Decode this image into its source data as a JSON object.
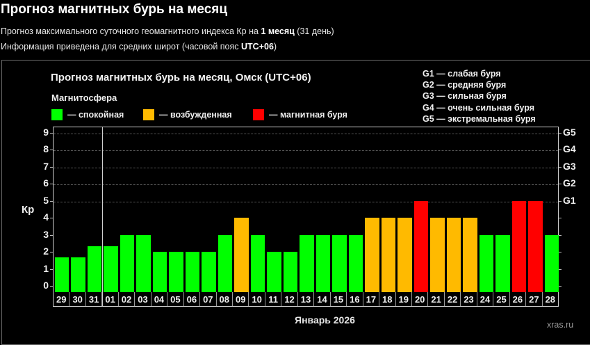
{
  "header": {
    "title": "Прогноз магнитных бурь на месяц",
    "line1_prefix": "Прогноз максимального суточного геомагнитного индекса Кр на ",
    "line1_bold": "1 месяц",
    "line1_suffix": " (31 день)",
    "line2_prefix": "Информация приведена для средних широт (часовой пояс ",
    "line2_bold": "UTC+06",
    "line2_suffix": ")"
  },
  "colors": {
    "calm": "#00ff00",
    "excited": "#ffba00",
    "storm": "#ff0000",
    "background": "#000000"
  },
  "legend": {
    "title": "Магнитосфера",
    "items": [
      {
        "label": "— спокойная",
        "color": "#00ff00"
      },
      {
        "label": "— возбужденная",
        "color": "#ffba00"
      },
      {
        "label": "— магнитная буря",
        "color": "#ff0000"
      }
    ],
    "g_scale": [
      "G1 — слабая буря",
      "G2 — средняя буря",
      "G3 — сильная буря",
      "G4 — очень сильная буря",
      "G5 — экстремальная буря"
    ]
  },
  "chart_data": {
    "type": "bar",
    "title": "Прогноз магнитных бурь на месяц, Омск (UTC+06)",
    "xlabel": "Январь 2026",
    "ylabel": "Кр",
    "ylim": [
      0,
      9
    ],
    "yticks": [
      0,
      1,
      2,
      3,
      4,
      5,
      6,
      7,
      8,
      9
    ],
    "right_axis_ticks": [
      {
        "kp": 5,
        "label": "G1"
      },
      {
        "kp": 6,
        "label": "G2"
      },
      {
        "kp": 7,
        "label": "G3"
      },
      {
        "kp": 8,
        "label": "G4"
      },
      {
        "kp": 9,
        "label": "G5"
      }
    ],
    "grid": "dashed horizontal at Kp 5-9",
    "categories": [
      "29",
      "30",
      "31",
      "01",
      "02",
      "03",
      "04",
      "05",
      "06",
      "07",
      "08",
      "09",
      "10",
      "11",
      "12",
      "13",
      "14",
      "15",
      "16",
      "17",
      "18",
      "19",
      "20",
      "21",
      "22",
      "23",
      "24",
      "25",
      "26",
      "27",
      "28"
    ],
    "values": [
      1.67,
      1.67,
      2.33,
      2.33,
      3,
      3,
      2,
      2,
      2,
      2,
      3,
      4,
      3,
      2,
      2,
      3,
      3,
      3,
      3,
      4,
      4,
      4,
      5,
      4,
      4,
      4,
      3,
      3,
      5,
      5,
      3
    ],
    "status": [
      "calm",
      "calm",
      "calm",
      "calm",
      "calm",
      "calm",
      "calm",
      "calm",
      "calm",
      "calm",
      "calm",
      "excited",
      "calm",
      "calm",
      "calm",
      "calm",
      "calm",
      "calm",
      "calm",
      "excited",
      "excited",
      "excited",
      "storm",
      "excited",
      "excited",
      "excited",
      "calm",
      "calm",
      "storm",
      "storm",
      "calm"
    ],
    "today_marker_after_index": 2
  },
  "footer": {
    "month": "Январь 2026",
    "watermark": "xras.ru"
  }
}
